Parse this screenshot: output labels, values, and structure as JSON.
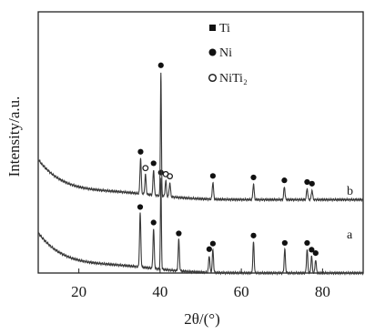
{
  "chart_data": {
    "type": "line",
    "xlabel": "2θ/(°)",
    "ylabel": "Intensity/a.u.",
    "xlim": [
      10,
      90
    ],
    "x_ticks": [
      20,
      40,
      60,
      80
    ],
    "y_ticks": false,
    "legend": {
      "placement": "top-center",
      "entries": [
        {
          "label": "Ti",
          "marker": "filled-square"
        },
        {
          "label": "Ni",
          "marker": "filled-circle"
        },
        {
          "label": "NiTi₂",
          "marker": "open-circle"
        }
      ]
    },
    "series": [
      {
        "name": "a",
        "peaks": [
          {
            "x": 35.1,
            "height": 0.95,
            "marker": "Ti"
          },
          {
            "x": 38.4,
            "height": 0.7,
            "marker": "Ti"
          },
          {
            "x": 40.2,
            "height": 1.6,
            "marker": "Ti"
          },
          {
            "x": 44.6,
            "height": 0.55,
            "marker": "Ni"
          },
          {
            "x": 52.1,
            "height": 0.3,
            "marker": "Ni"
          },
          {
            "x": 53.0,
            "height": 0.4,
            "marker": "Ti"
          },
          {
            "x": 63.0,
            "height": 0.55,
            "marker": "Ti"
          },
          {
            "x": 70.7,
            "height": 0.42,
            "marker": "Ti"
          },
          {
            "x": 76.2,
            "height": 0.42,
            "marker": "Ti"
          },
          {
            "x": 77.3,
            "height": 0.3,
            "marker": "Ti"
          },
          {
            "x": 78.3,
            "height": 0.24,
            "marker": "Ni"
          }
        ]
      },
      {
        "name": "b",
        "peaks": [
          {
            "x": 35.2,
            "height": 0.63,
            "marker": "Ti"
          },
          {
            "x": 36.4,
            "height": 0.35,
            "marker": "NiTi2"
          },
          {
            "x": 38.4,
            "height": 0.45,
            "marker": "Ti"
          },
          {
            "x": 40.2,
            "height": 2.2,
            "marker": "Ti"
          },
          {
            "x": 41.4,
            "height": 0.28,
            "marker": "NiTi2"
          },
          {
            "x": 42.4,
            "height": 0.25,
            "marker": "NiTi2"
          },
          {
            "x": 53.0,
            "height": 0.3,
            "marker": "Ti"
          },
          {
            "x": 63.0,
            "height": 0.28,
            "marker": "Ti"
          },
          {
            "x": 70.6,
            "height": 0.23,
            "marker": "Ti"
          },
          {
            "x": 76.2,
            "height": 0.2,
            "marker": "Ti"
          },
          {
            "x": 77.4,
            "height": 0.17,
            "marker": "Ti"
          }
        ]
      }
    ]
  }
}
